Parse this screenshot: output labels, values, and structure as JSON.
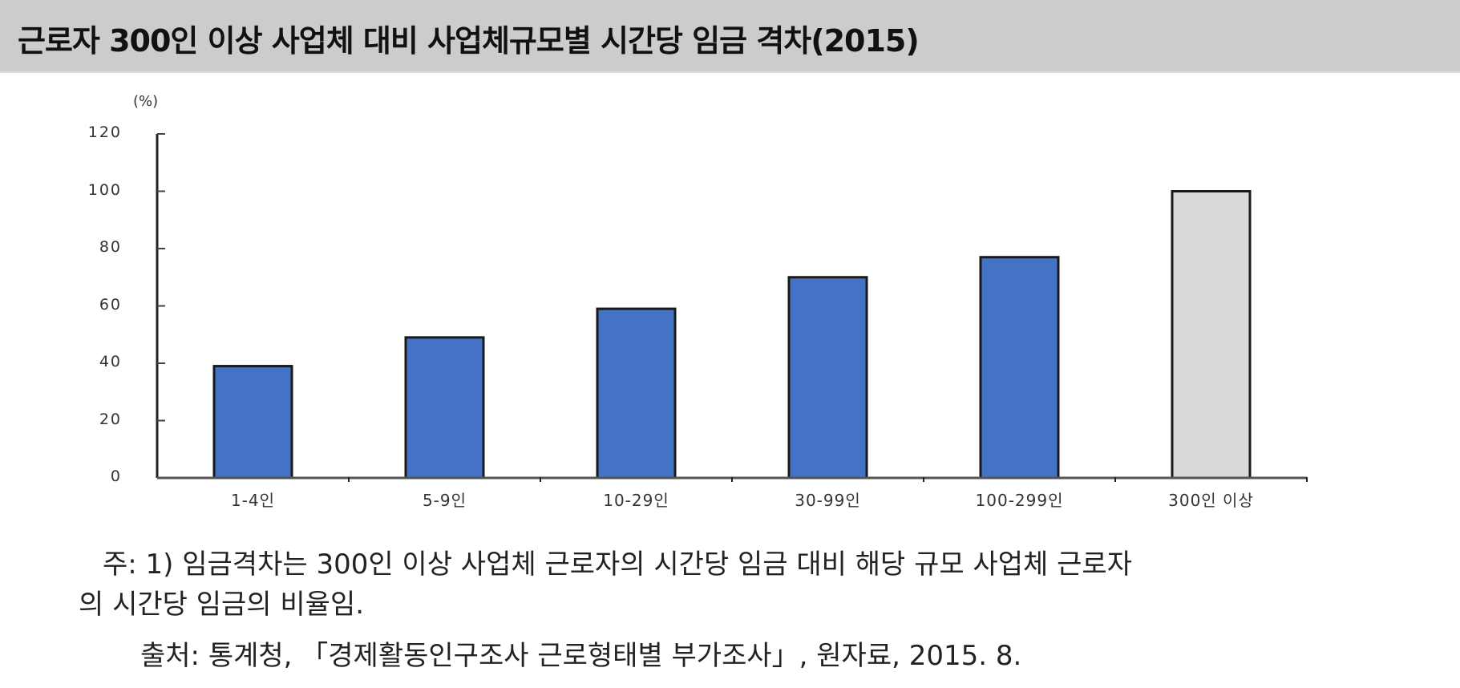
{
  "title": "근로자 300인 이상 사업체 대비 사업체규모별 시간당 임금 격차(2015)",
  "chart_data": {
    "type": "bar",
    "title": "근로자 300인 이상 사업체 대비 사업체규모별 시간당 임금 격차(2015)",
    "xlabel": "",
    "ylabel": "(%)",
    "ylim": [
      0,
      120
    ],
    "yticks": [
      0,
      20,
      40,
      60,
      80,
      100,
      120
    ],
    "grid": false,
    "legend": null,
    "categories": [
      "1-4인",
      "5-9인",
      "10-29인",
      "30-99인",
      "100-299인",
      "300인 이상"
    ],
    "values": [
      39,
      49,
      59,
      70,
      77,
      100
    ],
    "colors": [
      "#4472C4",
      "#4472C4",
      "#4472C4",
      "#4472C4",
      "#4472C4",
      "#D9D9D9"
    ]
  },
  "axis": {
    "unit_label": "(%)",
    "y_labels": [
      "120",
      "100",
      "80",
      "60",
      "40",
      "20",
      "0"
    ]
  },
  "notes": {
    "note_line1": "주: 1) 임금격차는 300인 이상 사업체 근로자의 시간당 임금 대비 해당 규모 사업체 근로자",
    "note_line2": "의 시간당 임금의 비율임.",
    "source": "출처: 통계청, 「경제활동인구조사 근로형태별 부가조사」, 원자료, 2015. 8."
  },
  "colors": {
    "header_band": "#CCCCCC",
    "bar_primary": "#4472C4",
    "bar_reference": "#D9D9D9",
    "axis": "#222222"
  }
}
